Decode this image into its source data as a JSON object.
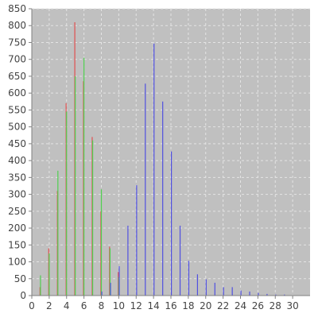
{
  "chart_data": {
    "type": "bar",
    "title": "",
    "xlabel": "",
    "ylabel": "",
    "xlim": [
      0,
      32
    ],
    "ylim": [
      0,
      850
    ],
    "x_ticks": [
      0,
      2,
      4,
      6,
      8,
      10,
      12,
      14,
      16,
      18,
      20,
      22,
      24,
      26,
      28,
      30
    ],
    "y_ticks": [
      0,
      50,
      100,
      150,
      200,
      250,
      300,
      350,
      400,
      450,
      500,
      550,
      600,
      650,
      700,
      750,
      800,
      850
    ],
    "grid": true,
    "legend": "none",
    "plot_background": "#c0c0c0",
    "grid_color": "#e4e4e4",
    "series": [
      {
        "color": "#e05050",
        "x": [
          1,
          2,
          3,
          4,
          5,
          6,
          7,
          8,
          9,
          10
        ],
        "values": [
          25,
          140,
          310,
          570,
          810,
          635,
          470,
          250,
          145,
          70
        ]
      },
      {
        "color": "#50d050",
        "x": [
          1,
          2,
          3,
          4,
          5,
          6,
          7,
          8,
          9,
          10
        ],
        "values": [
          60,
          125,
          370,
          545,
          650,
          705,
          460,
          315,
          140,
          55
        ]
      },
      {
        "color": "#5050e0",
        "x": [
          8,
          9,
          10,
          11,
          12,
          13,
          14,
          15,
          16,
          17,
          18,
          19,
          20,
          21,
          22,
          23,
          24,
          25,
          26,
          27,
          28,
          29
        ],
        "values": [
          12,
          38,
          87,
          207,
          327,
          628,
          747,
          575,
          427,
          207,
          103,
          63,
          48,
          38,
          25,
          25,
          15,
          12,
          8,
          5,
          3,
          3
        ]
      }
    ]
  }
}
